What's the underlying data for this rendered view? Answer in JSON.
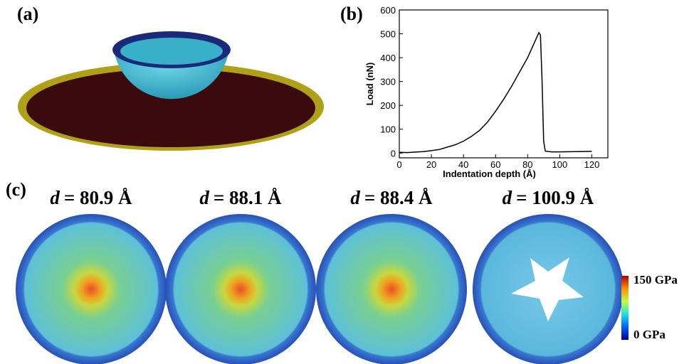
{
  "panel_labels": [
    "(a)",
    "(b)",
    "(c)"
  ],
  "chart_data": {
    "type": "line",
    "xlabel": "Indentation depth (Å)",
    "ylabel": "Load (nN)",
    "x": [
      0,
      5,
      10,
      15,
      20,
      25,
      30,
      35,
      40,
      45,
      50,
      55,
      60,
      65,
      70,
      75,
      80,
      85,
      87,
      88,
      89,
      90,
      91,
      95,
      100,
      110,
      120
    ],
    "values": [
      3,
      2,
      4,
      6,
      10,
      15,
      25,
      35,
      50,
      70,
      95,
      130,
      175,
      225,
      280,
      340,
      400,
      475,
      505,
      495,
      300,
      50,
      8,
      5,
      5,
      6,
      7
    ],
    "color": "#000000",
    "xlim": [
      0,
      130
    ],
    "xticks": [
      0,
      20,
      40,
      60,
      80,
      100,
      120
    ],
    "ylim": [
      -20,
      600
    ],
    "yticks": [
      0,
      100,
      200,
      300,
      400,
      500,
      600
    ]
  },
  "snapshots": {
    "variable": "d",
    "values": [
      "= 80.9 Å",
      "= 88.1 Å",
      "= 88.4 Å",
      "= 100.9 Å"
    ]
  },
  "colorbar": {
    "max_label": "150 GPa",
    "min_label": "0 GPa"
  }
}
